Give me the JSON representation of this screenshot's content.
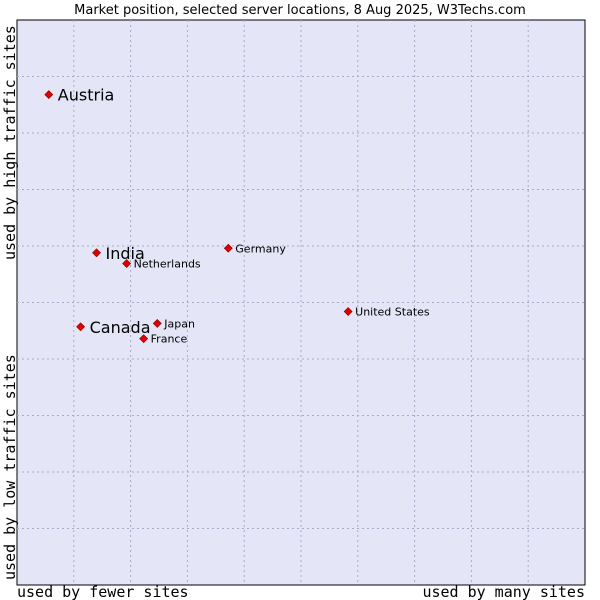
{
  "chart_data": {
    "type": "scatter",
    "title": "Market position, selected server locations, 8 Aug 2025, W3Techs.com",
    "xlabel_left": "used by fewer sites",
    "xlabel_right": "used by many sites",
    "ylabel_bottom": "used by low traffic sites",
    "ylabel_top": "used by high traffic sites",
    "xlim": [
      0,
      100
    ],
    "ylim": [
      0,
      100
    ],
    "grid": true,
    "plot_background": "#e4e6f8",
    "marker_color": "#dd0000",
    "points": [
      {
        "name": "Austria",
        "x": 5.6,
        "y": 86.8,
        "emphasis": true
      },
      {
        "name": "India",
        "x": 14.0,
        "y": 58.8,
        "emphasis": true
      },
      {
        "name": "Netherlands",
        "x": 19.3,
        "y": 56.9,
        "emphasis": false
      },
      {
        "name": "Germany",
        "x": 37.2,
        "y": 59.6,
        "emphasis": false
      },
      {
        "name": "United States",
        "x": 58.3,
        "y": 48.4,
        "emphasis": false
      },
      {
        "name": "Canada",
        "x": 11.2,
        "y": 45.7,
        "emphasis": true
      },
      {
        "name": "Japan",
        "x": 24.7,
        "y": 46.3,
        "emphasis": false
      },
      {
        "name": "France",
        "x": 22.3,
        "y": 43.6,
        "emphasis": false
      }
    ]
  }
}
